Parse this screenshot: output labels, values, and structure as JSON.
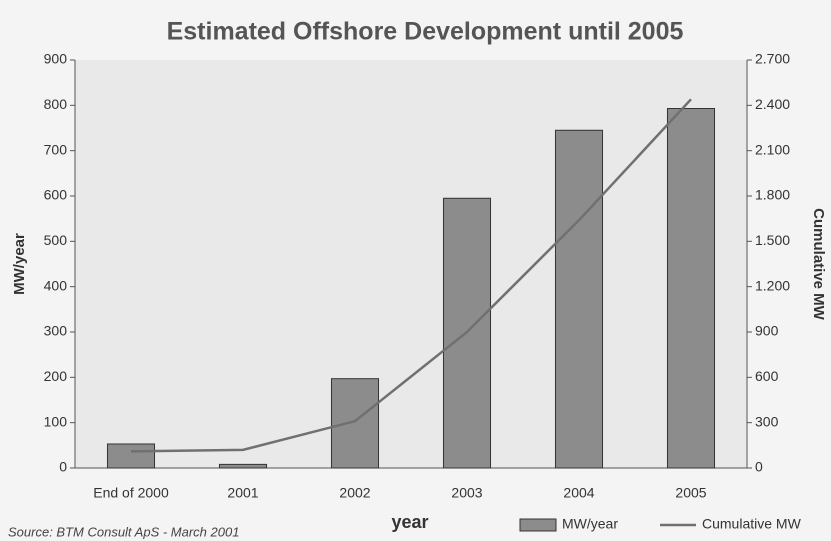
{
  "chart_data": {
    "type": "bar_line",
    "title": "Estimated Offshore Development until 2005",
    "x_label": "year",
    "y_label": "MW/year",
    "y2_label": "Cumulative MW",
    "source": "Source: BTM Consult ApS - March 2001",
    "categories": [
      "End of 2000",
      "2001",
      "2002",
      "2003",
      "2004",
      "2005"
    ],
    "series": [
      {
        "name": "MW/year",
        "type": "bar",
        "color": "#8c8c8c",
        "values": [
          53,
          8,
          197,
          595,
          745,
          793
        ]
      },
      {
        "name": "Cumulative MW",
        "type": "line",
        "axis": "y2",
        "color": "#707070",
        "values": [
          110,
          120,
          310,
          900,
          1640,
          2440
        ]
      }
    ],
    "ylim": [
      0,
      900
    ],
    "yticks": [
      0,
      100,
      200,
      300,
      400,
      500,
      600,
      700,
      800,
      900
    ],
    "y2lim": [
      0,
      2700
    ],
    "y2ticks": [
      0,
      300,
      600,
      900,
      {
        "value": 1200,
        "label": "1.200"
      },
      {
        "value": 1500,
        "label": "1.500"
      },
      {
        "value": 1800,
        "label": "1.800"
      },
      {
        "value": 2100,
        "label": "2.100"
      },
      {
        "value": 2400,
        "label": "2.400"
      },
      {
        "value": 2700,
        "label": "2.700"
      }
    ],
    "legend": "bottom-right"
  }
}
